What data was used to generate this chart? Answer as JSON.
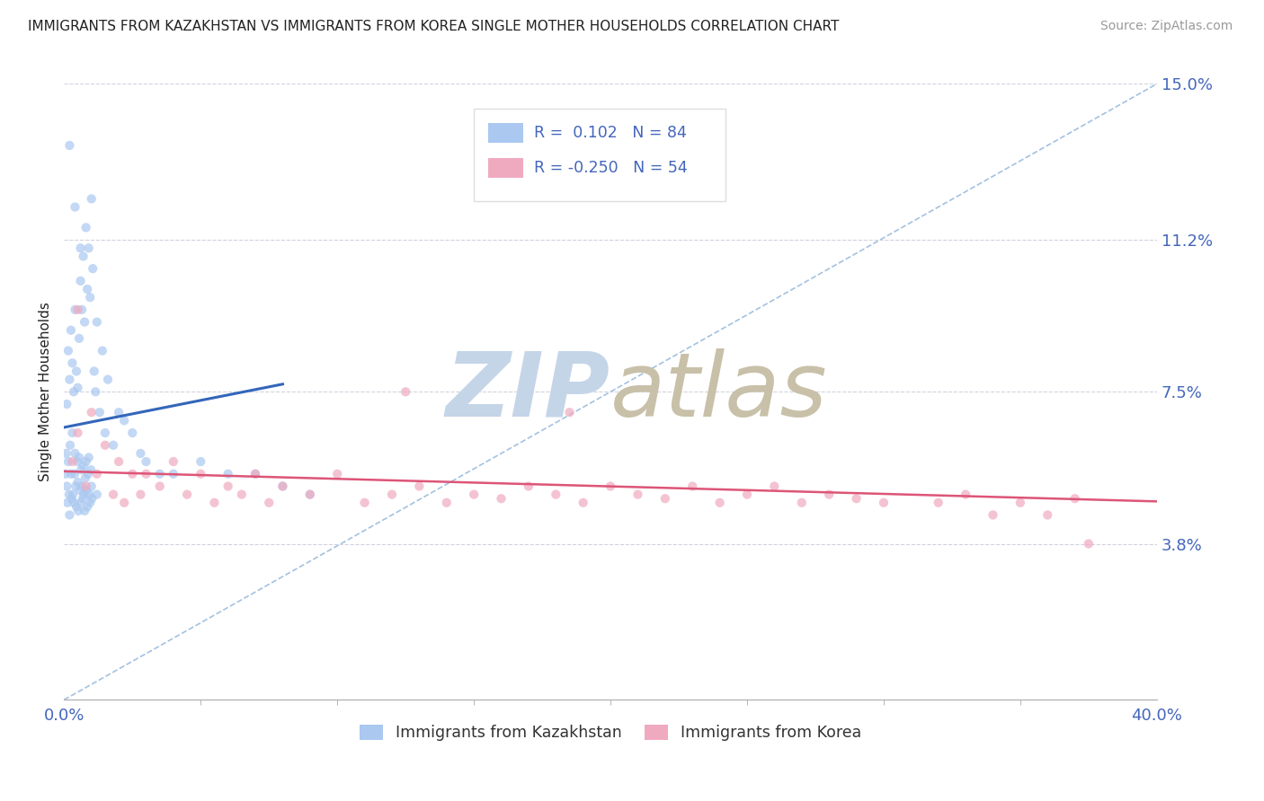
{
  "title": "IMMIGRANTS FROM KAZAKHSTAN VS IMMIGRANTS FROM KOREA SINGLE MOTHER HOUSEHOLDS CORRELATION CHART",
  "source": "Source: ZipAtlas.com",
  "xmin": 0.0,
  "xmax": 40.0,
  "ymin": 0.0,
  "ymax": 15.0,
  "yticks": [
    3.8,
    7.5,
    11.2,
    15.0
  ],
  "ytick_labels": [
    "3.8%",
    "7.5%",
    "11.2%",
    "15.0%"
  ],
  "kazakhstan_R": 0.102,
  "kazakhstan_N": 84,
  "korea_R": -0.25,
  "korea_N": 54,
  "kazakhstan_color": "#aac8f0",
  "korea_color": "#f0aabf",
  "kazakhstan_line_color": "#3366bb",
  "korea_line_color": "#dd5577",
  "diagonal_color": "#99bbdd",
  "watermark_zip_color": "#c5d5e8",
  "watermark_atlas_color": "#c8c0a8",
  "background_color": "#ffffff",
  "grid_color": "#ccccdd",
  "title_color": "#222222",
  "source_color": "#999999",
  "axis_label_color": "#222222",
  "tick_label_color": "#4466bb",
  "legend_box_color": "#dddddd",
  "kaz_x": [
    0.05,
    0.08,
    0.1,
    0.12,
    0.15,
    0.18,
    0.2,
    0.22,
    0.25,
    0.28,
    0.3,
    0.32,
    0.35,
    0.38,
    0.4,
    0.42,
    0.45,
    0.48,
    0.5,
    0.52,
    0.55,
    0.58,
    0.6,
    0.62,
    0.65,
    0.68,
    0.7,
    0.72,
    0.75,
    0.78,
    0.8,
    0.82,
    0.85,
    0.88,
    0.9,
    0.92,
    0.95,
    0.98,
    1.0,
    1.02,
    0.1,
    0.15,
    0.2,
    0.25,
    0.3,
    0.35,
    0.4,
    0.45,
    0.5,
    0.55,
    0.6,
    0.65,
    0.7,
    0.75,
    0.8,
    0.85,
    0.9,
    0.95,
    1.0,
    1.05,
    1.1,
    1.15,
    1.2,
    1.3,
    1.4,
    1.5,
    1.6,
    1.8,
    2.0,
    2.2,
    2.5,
    2.8,
    3.0,
    3.5,
    4.0,
    5.0,
    6.0,
    7.0,
    8.0,
    9.0,
    0.2,
    0.4,
    0.6,
    1.2
  ],
  "kaz_y": [
    5.5,
    6.0,
    5.2,
    4.8,
    5.8,
    5.0,
    4.5,
    6.2,
    5.5,
    4.9,
    6.5,
    5.0,
    4.8,
    5.5,
    6.0,
    5.2,
    4.7,
    5.8,
    5.3,
    4.6,
    5.9,
    5.1,
    4.8,
    5.6,
    5.2,
    4.9,
    5.7,
    5.0,
    4.6,
    5.4,
    5.8,
    5.1,
    4.7,
    5.5,
    5.9,
    5.0,
    4.8,
    5.6,
    5.2,
    4.9,
    7.2,
    8.5,
    7.8,
    9.0,
    8.2,
    7.5,
    9.5,
    8.0,
    7.6,
    8.8,
    10.2,
    9.5,
    10.8,
    9.2,
    11.5,
    10.0,
    11.0,
    9.8,
    12.2,
    10.5,
    8.0,
    7.5,
    9.2,
    7.0,
    8.5,
    6.5,
    7.8,
    6.2,
    7.0,
    6.8,
    6.5,
    6.0,
    5.8,
    5.5,
    5.5,
    5.8,
    5.5,
    5.5,
    5.2,
    5.0,
    13.5,
    12.0,
    11.0,
    5.0
  ],
  "kor_x": [
    0.3,
    0.5,
    0.8,
    1.0,
    1.2,
    1.5,
    1.8,
    2.0,
    2.2,
    2.5,
    2.8,
    3.0,
    3.5,
    4.0,
    4.5,
    5.0,
    5.5,
    6.0,
    6.5,
    7.0,
    7.5,
    8.0,
    9.0,
    10.0,
    11.0,
    12.0,
    13.0,
    14.0,
    15.0,
    16.0,
    17.0,
    18.0,
    19.0,
    20.0,
    21.0,
    22.0,
    23.0,
    24.0,
    25.0,
    26.0,
    27.0,
    28.0,
    29.0,
    30.0,
    32.0,
    33.0,
    34.0,
    35.0,
    36.0,
    37.0,
    12.5,
    18.5,
    37.5,
    0.5
  ],
  "kor_y": [
    5.8,
    6.5,
    5.2,
    7.0,
    5.5,
    6.2,
    5.0,
    5.8,
    4.8,
    5.5,
    5.0,
    5.5,
    5.2,
    5.8,
    5.0,
    5.5,
    4.8,
    5.2,
    5.0,
    5.5,
    4.8,
    5.2,
    5.0,
    5.5,
    4.8,
    5.0,
    5.2,
    4.8,
    5.0,
    4.9,
    5.2,
    5.0,
    4.8,
    5.2,
    5.0,
    4.9,
    5.2,
    4.8,
    5.0,
    5.2,
    4.8,
    5.0,
    4.9,
    4.8,
    4.8,
    5.0,
    4.5,
    4.8,
    4.5,
    4.9,
    7.5,
    7.0,
    3.8,
    9.5
  ]
}
